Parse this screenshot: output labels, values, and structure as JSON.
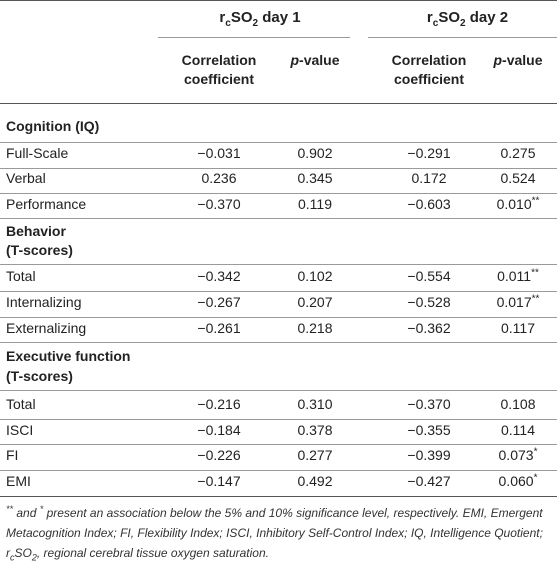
{
  "header": {
    "group1": {
      "pre": "r",
      "sub": "c",
      "mid": "SO",
      "sub2": "2",
      "post": " day 1"
    },
    "group2": {
      "pre": "r",
      "sub": "c",
      "mid": "SO",
      "sub2": "2",
      "post": " day 2"
    },
    "col_corr_line1": "Correlation",
    "col_corr_line2": "coefficient",
    "col_p_prefix": "p",
    "col_p_suffix": "-value"
  },
  "sections": [
    {
      "title_lines": [
        "Cognition (IQ)"
      ],
      "rows": [
        {
          "label": "Full-Scale",
          "c1": "−0.031",
          "p1": "0.902",
          "c2": "−0.291",
          "p2": "0.275",
          "mark": ""
        },
        {
          "label": "Verbal",
          "c1": "0.236",
          "p1": "0.345",
          "c2": "0.172",
          "p2": "0.524",
          "mark": ""
        },
        {
          "label": "Performance",
          "c1": "−0.370",
          "p1": "0.119",
          "c2": "−0.603",
          "p2": "0.010",
          "mark": "**"
        }
      ]
    },
    {
      "title_lines": [
        "Behavior",
        "(T-scores)"
      ],
      "rows": [
        {
          "label": "Total",
          "c1": "−0.342",
          "p1": "0.102",
          "c2": "−0.554",
          "p2": "0.011",
          "mark": "**"
        },
        {
          "label": "Internalizing",
          "c1": "−0.267",
          "p1": "0.207",
          "c2": "−0.528",
          "p2": "0.017",
          "mark": "**"
        },
        {
          "label": "Externalizing",
          "c1": "−0.261",
          "p1": "0.218",
          "c2": "−0.362",
          "p2": "0.117",
          "mark": ""
        }
      ]
    },
    {
      "title_lines": [
        "Executive function",
        "(T-scores)"
      ],
      "rows": [
        {
          "label": "Total",
          "c1": "−0.216",
          "p1": "0.310",
          "c2": "−0.370",
          "p2": "0.108",
          "mark": ""
        },
        {
          "label": "ISCI",
          "c1": "−0.184",
          "p1": "0.378",
          "c2": "−0.355",
          "p2": "0.114",
          "mark": ""
        },
        {
          "label": "FI",
          "c1": "−0.226",
          "p1": "0.277",
          "c2": "−0.399",
          "p2": "0.073",
          "mark": "*"
        },
        {
          "label": "EMI",
          "c1": "−0.147",
          "p1": "0.492",
          "c2": "−0.427",
          "p2": "0.060",
          "mark": "*"
        }
      ]
    }
  ],
  "footnote": {
    "mark1": "**",
    "and": " and ",
    "mark2": "*",
    "text1": " present an association below the 5% and 10% significance level, respectively. EMI, Emergent Metacognition Index; FI, Flexibility Index; ISCI, Inhibitory Self-Control Index; IQ, Intelligence Quotient; r",
    "sub1": "c",
    "text2": "SO",
    "sub2": "2",
    "text3": ", regional cerebral tissue oxygen saturation."
  }
}
